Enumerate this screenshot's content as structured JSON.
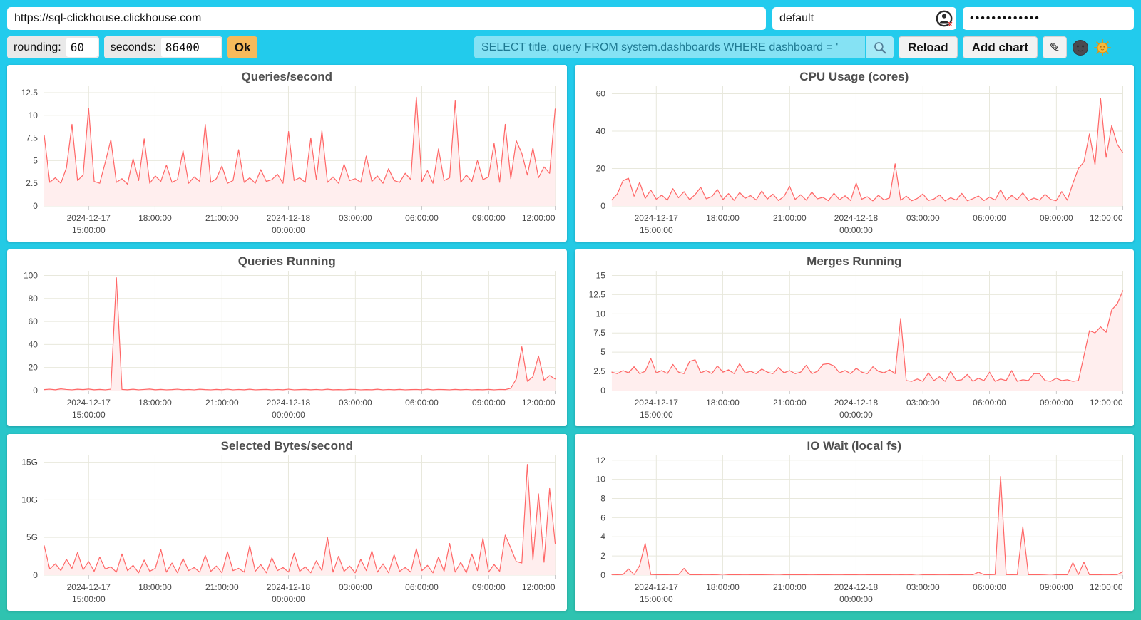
{
  "toolbar": {
    "url": "https://sql-clickhouse.clickhouse.com",
    "user": "default",
    "password_masked": "•••••••••••••",
    "rounding_label": "rounding:",
    "rounding_value": "60",
    "seconds_label": "seconds:",
    "seconds_value": "86400",
    "ok_label": "Ok",
    "query": "SELECT title, query FROM system.dashboards WHERE dashboard = '",
    "reload_label": "Reload",
    "add_chart_label": "Add chart",
    "edit_icon": "✎"
  },
  "colors": {
    "background_top": "#22CBEE",
    "background_bottom": "#2FC3AF",
    "line": "#FF6666",
    "fill": "#FFEEEE",
    "grid": "#e8e8dc",
    "ok_button": "#F7BA5B",
    "query_text": "#1F7A93"
  },
  "chart_data": {
    "type": "line",
    "x_range": [
      "2024-12-17 13:00:00",
      "2024-12-18 12:00:00"
    ],
    "x_ticks": [
      {
        "f": 0.087,
        "lines": [
          "2024-12-17",
          "15:00:00"
        ]
      },
      {
        "f": 0.217,
        "lines": [
          "18:00:00"
        ]
      },
      {
        "f": 0.348,
        "lines": [
          "21:00:00"
        ]
      },
      {
        "f": 0.478,
        "lines": [
          "2024-12-18",
          "00:00:00"
        ]
      },
      {
        "f": 0.609,
        "lines": [
          "03:00:00"
        ]
      },
      {
        "f": 0.739,
        "lines": [
          "06:00:00"
        ]
      },
      {
        "f": 0.87,
        "lines": [
          "09:00:00"
        ]
      },
      {
        "f": 1.0,
        "lines": [
          "12:00:00"
        ]
      }
    ],
    "charts": [
      {
        "title": "Queries/second",
        "ymax": 13.2,
        "yticks": [
          {
            "v": 0,
            "label": "0"
          },
          {
            "v": 2.5,
            "label": "2.5"
          },
          {
            "v": 5,
            "label": "5"
          },
          {
            "v": 7.5,
            "label": "7.5"
          },
          {
            "v": 10,
            "label": "10"
          },
          {
            "v": 12.5,
            "label": "12.5"
          }
        ],
        "values": [
          7.8,
          2.6,
          3.1,
          2.5,
          4.2,
          9.0,
          2.8,
          3.4,
          10.8,
          2.7,
          2.5,
          4.8,
          7.3,
          2.6,
          3.0,
          2.4,
          5.2,
          2.8,
          7.4,
          2.5,
          3.3,
          2.7,
          4.5,
          2.6,
          2.9,
          6.1,
          2.5,
          3.2,
          2.7,
          9.0,
          2.6,
          3.0,
          4.4,
          2.5,
          2.8,
          6.2,
          2.6,
          3.1,
          2.5,
          4.0,
          2.7,
          2.9,
          3.5,
          2.5,
          8.2,
          2.8,
          3.1,
          2.6,
          7.5,
          2.9,
          8.3,
          2.6,
          3.2,
          2.5,
          4.6,
          2.8,
          3.0,
          2.6,
          5.5,
          2.7,
          3.3,
          2.5,
          4.1,
          2.8,
          2.6,
          3.6,
          2.9,
          12.0,
          2.7,
          3.9,
          2.5,
          6.3,
          2.8,
          3.1,
          11.6,
          2.6,
          3.4,
          2.7,
          5.0,
          2.9,
          3.2,
          6.9,
          2.6,
          9.0,
          3.0,
          7.2,
          5.8,
          3.4,
          6.4,
          3.1,
          4.3,
          3.6,
          10.7
        ]
      },
      {
        "title": "CPU Usage (cores)",
        "ymax": 64,
        "yticks": [
          {
            "v": 0,
            "label": "0"
          },
          {
            "v": 20,
            "label": "20"
          },
          {
            "v": 40,
            "label": "40"
          },
          {
            "v": 60,
            "label": "60"
          }
        ],
        "values": [
          3.2,
          6.5,
          13.5,
          14.8,
          5.2,
          12.6,
          4.0,
          8.5,
          3.6,
          5.8,
          3.1,
          9.2,
          4.4,
          7.6,
          3.3,
          6.1,
          10.0,
          3.8,
          5.0,
          8.8,
          3.4,
          6.6,
          3.0,
          7.2,
          4.1,
          5.5,
          3.2,
          8.0,
          3.7,
          6.3,
          2.9,
          5.1,
          10.5,
          3.5,
          6.0,
          3.1,
          7.4,
          3.8,
          4.6,
          2.8,
          6.8,
          3.3,
          5.4,
          2.9,
          12.2,
          3.6,
          4.9,
          2.7,
          5.7,
          3.2,
          4.3,
          22.5,
          3.0,
          5.2,
          2.8,
          4.0,
          6.4,
          2.9,
          3.7,
          5.9,
          2.7,
          4.4,
          3.1,
          6.7,
          2.8,
          3.9,
          5.3,
          2.9,
          4.7,
          3.2,
          8.6,
          3.0,
          5.6,
          3.4,
          7.0,
          2.9,
          4.2,
          3.1,
          6.2,
          3.5,
          2.8,
          7.7,
          3.1,
          12.0,
          20.0,
          23.5,
          38.5,
          22.0,
          57.5,
          26.0,
          43.0,
          33.0,
          28.5
        ]
      },
      {
        "title": "Queries Running",
        "ymax": 104,
        "yticks": [
          {
            "v": 0,
            "label": "0"
          },
          {
            "v": 20,
            "label": "20"
          },
          {
            "v": 40,
            "label": "40"
          },
          {
            "v": 60,
            "label": "60"
          },
          {
            "v": 80,
            "label": "80"
          },
          {
            "v": 100,
            "label": "100"
          }
        ],
        "values": [
          0.8,
          1.2,
          0.7,
          1.4,
          0.9,
          0.6,
          1.1,
          0.8,
          1.3,
          0.7,
          1.0,
          0.6,
          1.2,
          98.0,
          0.9,
          0.7,
          1.1,
          0.6,
          0.9,
          1.3,
          0.7,
          1.0,
          0.6,
          0.8,
          1.2,
          0.7,
          0.9,
          0.6,
          1.1,
          0.8,
          0.6,
          1.0,
          0.7,
          1.2,
          0.6,
          0.9,
          0.7,
          1.1,
          0.6,
          0.8,
          1.0,
          0.6,
          0.9,
          0.7,
          1.2,
          0.6,
          0.8,
          1.0,
          0.7,
          0.9,
          0.6,
          1.1,
          0.7,
          0.8,
          0.6,
          1.0,
          0.9,
          0.6,
          0.8,
          0.7,
          1.1,
          0.6,
          0.9,
          0.7,
          1.0,
          0.6,
          0.8,
          0.9,
          0.7,
          1.1,
          0.6,
          0.9,
          0.8,
          0.6,
          1.0,
          0.7,
          0.9,
          0.6,
          0.8,
          0.7,
          1.0,
          0.6,
          0.9,
          0.8,
          2.0,
          10.0,
          38.0,
          8.0,
          12.0,
          30.0,
          9.0,
          13.0,
          10.0
        ]
      },
      {
        "title": "Merges Running",
        "ymax": 15.6,
        "yticks": [
          {
            "v": 0,
            "label": "0"
          },
          {
            "v": 2.5,
            "label": "2.5"
          },
          {
            "v": 5,
            "label": "5"
          },
          {
            "v": 7.5,
            "label": "7.5"
          },
          {
            "v": 10,
            "label": "10"
          },
          {
            "v": 12.5,
            "label": "12.5"
          },
          {
            "v": 15,
            "label": "15"
          }
        ],
        "values": [
          2.4,
          2.2,
          2.6,
          2.3,
          3.1,
          2.2,
          2.5,
          4.2,
          2.3,
          2.6,
          2.2,
          3.4,
          2.4,
          2.2,
          3.8,
          4.0,
          2.3,
          2.6,
          2.2,
          3.2,
          2.4,
          2.7,
          2.2,
          3.5,
          2.3,
          2.5,
          2.2,
          2.8,
          2.4,
          2.2,
          3.0,
          2.3,
          2.6,
          2.2,
          2.4,
          3.3,
          2.2,
          2.5,
          3.4,
          3.5,
          3.2,
          2.3,
          2.6,
          2.2,
          2.9,
          2.4,
          2.2,
          3.1,
          2.5,
          2.3,
          2.7,
          2.2,
          9.4,
          1.3,
          1.2,
          1.5,
          1.2,
          2.3,
          1.3,
          1.8,
          1.2,
          2.5,
          1.3,
          1.4,
          2.1,
          1.2,
          1.6,
          1.3,
          2.4,
          1.2,
          1.5,
          1.3,
          2.6,
          1.2,
          1.4,
          1.3,
          2.2,
          2.2,
          1.3,
          1.2,
          1.6,
          1.3,
          1.4,
          1.2,
          1.3,
          4.5,
          7.8,
          7.5,
          8.3,
          7.6,
          10.5,
          11.3,
          13.0
        ]
      },
      {
        "title": "Selected Bytes/second",
        "ymax": 15.9,
        "unit": "G",
        "yticks": [
          {
            "v": 0,
            "label": "0"
          },
          {
            "v": 5,
            "label": "5G"
          },
          {
            "v": 10,
            "label": "10G"
          },
          {
            "v": 15,
            "label": "15G"
          }
        ],
        "values": [
          3.9,
          0.8,
          1.5,
          0.6,
          2.1,
          0.9,
          3.0,
          0.7,
          1.8,
          0.5,
          2.4,
          0.8,
          1.1,
          0.4,
          2.8,
          0.6,
          1.3,
          0.3,
          2.0,
          0.5,
          0.9,
          3.4,
          0.4,
          1.6,
          0.3,
          2.2,
          0.6,
          1.0,
          0.4,
          2.6,
          0.5,
          1.2,
          0.3,
          3.1,
          0.6,
          0.9,
          0.4,
          3.9,
          0.5,
          1.4,
          0.3,
          2.3,
          0.6,
          1.0,
          0.4,
          2.9,
          0.5,
          1.1,
          0.3,
          1.9,
          0.6,
          5.0,
          0.4,
          2.5,
          0.5,
          1.2,
          0.3,
          2.1,
          0.6,
          3.2,
          0.4,
          1.5,
          0.3,
          2.7,
          0.5,
          1.0,
          0.4,
          3.5,
          0.6,
          1.3,
          0.3,
          2.4,
          0.5,
          4.2,
          0.4,
          1.7,
          0.3,
          2.8,
          0.6,
          4.9,
          0.4,
          1.4,
          0.5,
          5.3,
          3.6,
          1.8,
          1.6,
          14.7,
          2.0,
          10.8,
          1.7,
          11.5,
          4.2
        ]
      },
      {
        "title": "IO Wait (local fs)",
        "ymax": 12.5,
        "yticks": [
          {
            "v": 0,
            "label": "0"
          },
          {
            "v": 2,
            "label": "2"
          },
          {
            "v": 4,
            "label": "4"
          },
          {
            "v": 6,
            "label": "6"
          },
          {
            "v": 8,
            "label": "8"
          },
          {
            "v": 10,
            "label": "10"
          },
          {
            "v": 12,
            "label": "12"
          }
        ],
        "values": [
          0.05,
          0.04,
          0.06,
          0.65,
          0.05,
          1.0,
          3.3,
          0.06,
          0.04,
          0.05,
          0.04,
          0.06,
          0.05,
          0.7,
          0.04,
          0.05,
          0.04,
          0.06,
          0.04,
          0.05,
          0.1,
          0.04,
          0.05,
          0.04,
          0.06,
          0.04,
          0.05,
          0.04,
          0.05,
          0.06,
          0.08,
          0.04,
          0.05,
          0.04,
          0.05,
          0.04,
          0.06,
          0.04,
          0.05,
          0.04,
          0.05,
          0.06,
          0.04,
          0.05,
          0.04,
          0.06,
          0.04,
          0.05,
          0.04,
          0.05,
          0.04,
          0.06,
          0.04,
          0.05,
          0.04,
          0.1,
          0.04,
          0.05,
          0.04,
          0.05,
          0.06,
          0.04,
          0.05,
          0.04,
          0.06,
          0.04,
          0.3,
          0.05,
          0.04,
          0.06,
          10.3,
          0.05,
          0.04,
          0.05,
          5.05,
          0.04,
          0.05,
          0.04,
          0.06,
          0.1,
          0.04,
          0.05,
          0.04,
          1.3,
          0.05,
          1.35,
          0.04,
          0.05,
          0.04,
          0.06,
          0.04,
          0.05,
          0.35
        ]
      }
    ]
  }
}
